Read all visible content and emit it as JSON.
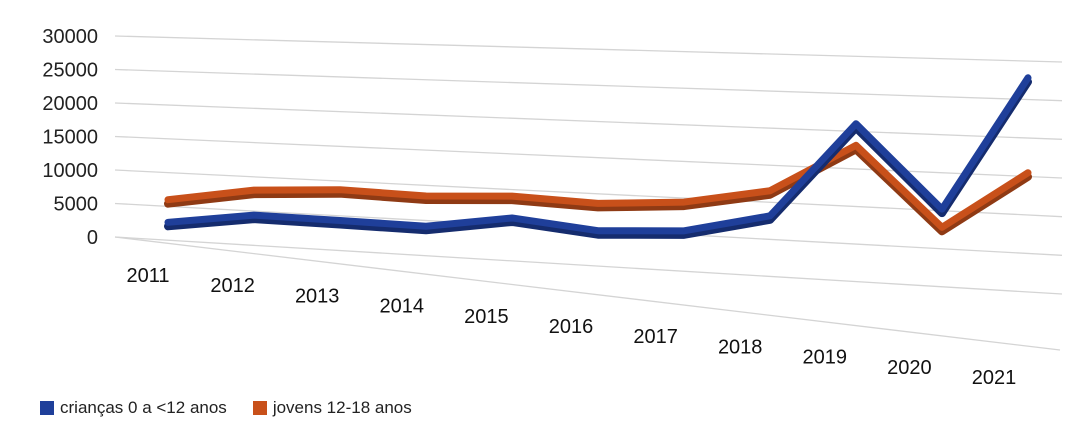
{
  "chart_data": {
    "type": "line",
    "categories": [
      "2011",
      "2012",
      "2013",
      "2014",
      "2015",
      "2016",
      "2017",
      "2018",
      "2019",
      "2020",
      "2021"
    ],
    "series": [
      {
        "name": "crianças 0 a <12 anos",
        "color": "#1f3f9a",
        "values": [
          4200,
          5100,
          4200,
          3200,
          4300,
          2200,
          2000,
          4200,
          19000,
          5000,
          27000
        ]
      },
      {
        "name": "jovens 12-18 anos",
        "color": "#c8501a",
        "values": [
          7400,
          8700,
          8700,
          7700,
          7600,
          6400,
          6500,
          8200,
          15500,
          2000,
          11000
        ]
      }
    ],
    "ylim": [
      0,
      30000
    ],
    "yticks": [
      "0",
      "5000",
      "10000",
      "15000",
      "20000",
      "25000",
      "30000"
    ],
    "grid": true,
    "style": "3d-line",
    "legend_position": "bottom-left"
  }
}
